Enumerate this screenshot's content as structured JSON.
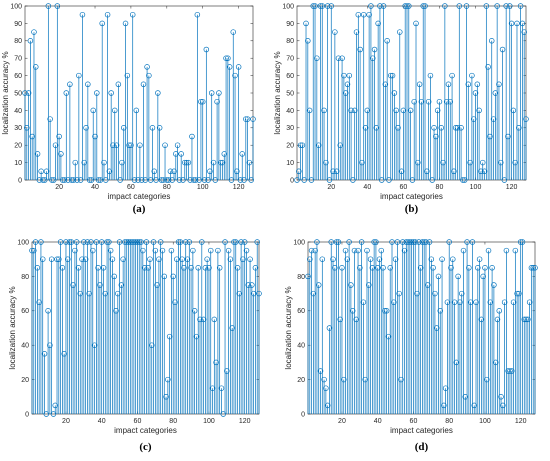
{
  "chart_data": [
    {
      "type": "stem",
      "panel_label": "(a)",
      "xlabel": "impact categories",
      "ylabel": "localization accuracy %",
      "xlim": [
        1,
        128
      ],
      "ylim": [
        0,
        100
      ],
      "xticks": [
        20,
        40,
        60,
        80,
        100,
        120
      ],
      "yticks": [
        0,
        10,
        20,
        30,
        40,
        50,
        60,
        70,
        80,
        90,
        100
      ],
      "color": "#0072BD",
      "series": [
        {
          "values": [
            50,
            30,
            50,
            80,
            25,
            85,
            65,
            15,
            0,
            5,
            0,
            0,
            5,
            100,
            35,
            0,
            0,
            20,
            100,
            25,
            15,
            0,
            0,
            50,
            0,
            55,
            0,
            0,
            10,
            0,
            60,
            0,
            95,
            10,
            30,
            55,
            0,
            0,
            40,
            25,
            50,
            0,
            0,
            90,
            10,
            0,
            95,
            5,
            50,
            20,
            40,
            20,
            55,
            0,
            10,
            30,
            90,
            60,
            20,
            20,
            95,
            0,
            40,
            0,
            20,
            0,
            55,
            0,
            65,
            60,
            0,
            30,
            5,
            0,
            50,
            30,
            0,
            0,
            20,
            0,
            0,
            5,
            0,
            5,
            15,
            20,
            0,
            15,
            0,
            10,
            10,
            10,
            0,
            25,
            0,
            0,
            95,
            0,
            45,
            45,
            0,
            75,
            0,
            5,
            50,
            10,
            0,
            45,
            50,
            10,
            10,
            15,
            70,
            70,
            65,
            0,
            85,
            60,
            5,
            65,
            0,
            15,
            0,
            35,
            35,
            10,
            0,
            35
          ]
        }
      ]
    },
    {
      "type": "stem",
      "panel_label": "(b)",
      "xlabel": "impact categories",
      "ylabel": "localization accuracy %",
      "xlim": [
        1,
        128
      ],
      "ylim": [
        0,
        100
      ],
      "xticks": [
        20,
        40,
        60,
        80,
        100,
        120
      ],
      "yticks": [
        0,
        10,
        20,
        30,
        40,
        50,
        60,
        70,
        80,
        90,
        100
      ],
      "color": "#0072BD",
      "series": [
        {
          "values": [
            0,
            5,
            20,
            20,
            0,
            90,
            80,
            40,
            0,
            100,
            100,
            70,
            20,
            100,
            100,
            40,
            10,
            100,
            0,
            100,
            5,
            85,
            5,
            70,
            20,
            70,
            60,
            50,
            55,
            60,
            40,
            0,
            40,
            85,
            95,
            75,
            10,
            95,
            30,
            40,
            95,
            100,
            70,
            75,
            30,
            90,
            100,
            0,
            100,
            55,
            80,
            0,
            60,
            60,
            50,
            40,
            30,
            85,
            5,
            40,
            100,
            100,
            100,
            40,
            0,
            45,
            90,
            10,
            55,
            45,
            100,
            100,
            5,
            45,
            60,
            0,
            30,
            25,
            40,
            45,
            30,
            10,
            100,
            45,
            55,
            45,
            60,
            5,
            30,
            30,
            100,
            30,
            0,
            0,
            100,
            55,
            10,
            60,
            35,
            50,
            55,
            40,
            5,
            10,
            5,
            100,
            65,
            25,
            80,
            35,
            50,
            100,
            55,
            10,
            75,
            0,
            100,
            25,
            100,
            90,
            40,
            10,
            90,
            30,
            100,
            90,
            85,
            35
          ]
        }
      ]
    },
    {
      "type": "stem",
      "panel_label": "(c)",
      "xlabel": "impact categories",
      "ylabel": "localization accuracy %",
      "xlim": [
        1,
        128
      ],
      "ylim": [
        0,
        100
      ],
      "xticks": [
        20,
        40,
        60,
        80,
        100,
        120
      ],
      "yticks": [
        0,
        20,
        40,
        60,
        80,
        100
      ],
      "color": "#0072BD",
      "series": [
        {
          "values": [
            95,
            95,
            100,
            85,
            65,
            100,
            90,
            35,
            0,
            60,
            40,
            90,
            0,
            5,
            90,
            90,
            100,
            85,
            35,
            100,
            90,
            100,
            100,
            75,
            95,
            100,
            85,
            70,
            90,
            100,
            90,
            100,
            70,
            100,
            95,
            40,
            100,
            85,
            75,
            100,
            85,
            70,
            100,
            100,
            95,
            90,
            80,
            60,
            70,
            100,
            75,
            90,
            100,
            100,
            100,
            100,
            100,
            100,
            100,
            100,
            100,
            100,
            95,
            85,
            100,
            85,
            90,
            40,
            100,
            95,
            75,
            90,
            100,
            95,
            80,
            10,
            20,
            45,
            95,
            80,
            65,
            90,
            100,
            100,
            90,
            85,
            100,
            90,
            100,
            85,
            95,
            60,
            45,
            85,
            55,
            100,
            55,
            85,
            90,
            85,
            95,
            15,
            55,
            30,
            95,
            85,
            15,
            0,
            100,
            25,
            95,
            90,
            50,
            100,
            100,
            85,
            70,
            100,
            90,
            100,
            95,
            75,
            90,
            75,
            70,
            85,
            100,
            70
          ]
        }
      ]
    },
    {
      "type": "stem",
      "panel_label": "(d)",
      "xlabel": "impact categories",
      "ylabel": "localization accuracy %",
      "xlim": [
        1,
        128
      ],
      "ylim": [
        0,
        100
      ],
      "xticks": [
        20,
        40,
        60,
        80,
        100,
        120
      ],
      "yticks": [
        0,
        20,
        40,
        60,
        80,
        100
      ],
      "color": "#0072BD",
      "series": [
        {
          "values": [
            80,
            90,
            95,
            70,
            95,
            100,
            75,
            25,
            90,
            20,
            15,
            5,
            50,
            100,
            90,
            85,
            100,
            100,
            55,
            85,
            20,
            95,
            90,
            100,
            75,
            60,
            95,
            55,
            95,
            85,
            100,
            65,
            20,
            95,
            75,
            90,
            85,
            100,
            100,
            85,
            90,
            95,
            85,
            60,
            60,
            45,
            85,
            100,
            65,
            90,
            100,
            70,
            20,
            100,
            95,
            100,
            100,
            100,
            100,
            100,
            100,
            70,
            100,
            85,
            100,
            100,
            100,
            75,
            100,
            90,
            85,
            70,
            50,
            80,
            60,
            90,
            5,
            15,
            65,
            100,
            85,
            90,
            65,
            30,
            80,
            65,
            70,
            95,
            10,
            100,
            85,
            65,
            100,
            5,
            65,
            85,
            90,
            55,
            80,
            85,
            20,
            95,
            65,
            85,
            75,
            30,
            55,
            60,
            10,
            5,
            65,
            95,
            25,
            25,
            25,
            65,
            95,
            70,
            70,
            100,
            100,
            55,
            55,
            55,
            65,
            85,
            85,
            85
          ]
        }
      ]
    }
  ]
}
